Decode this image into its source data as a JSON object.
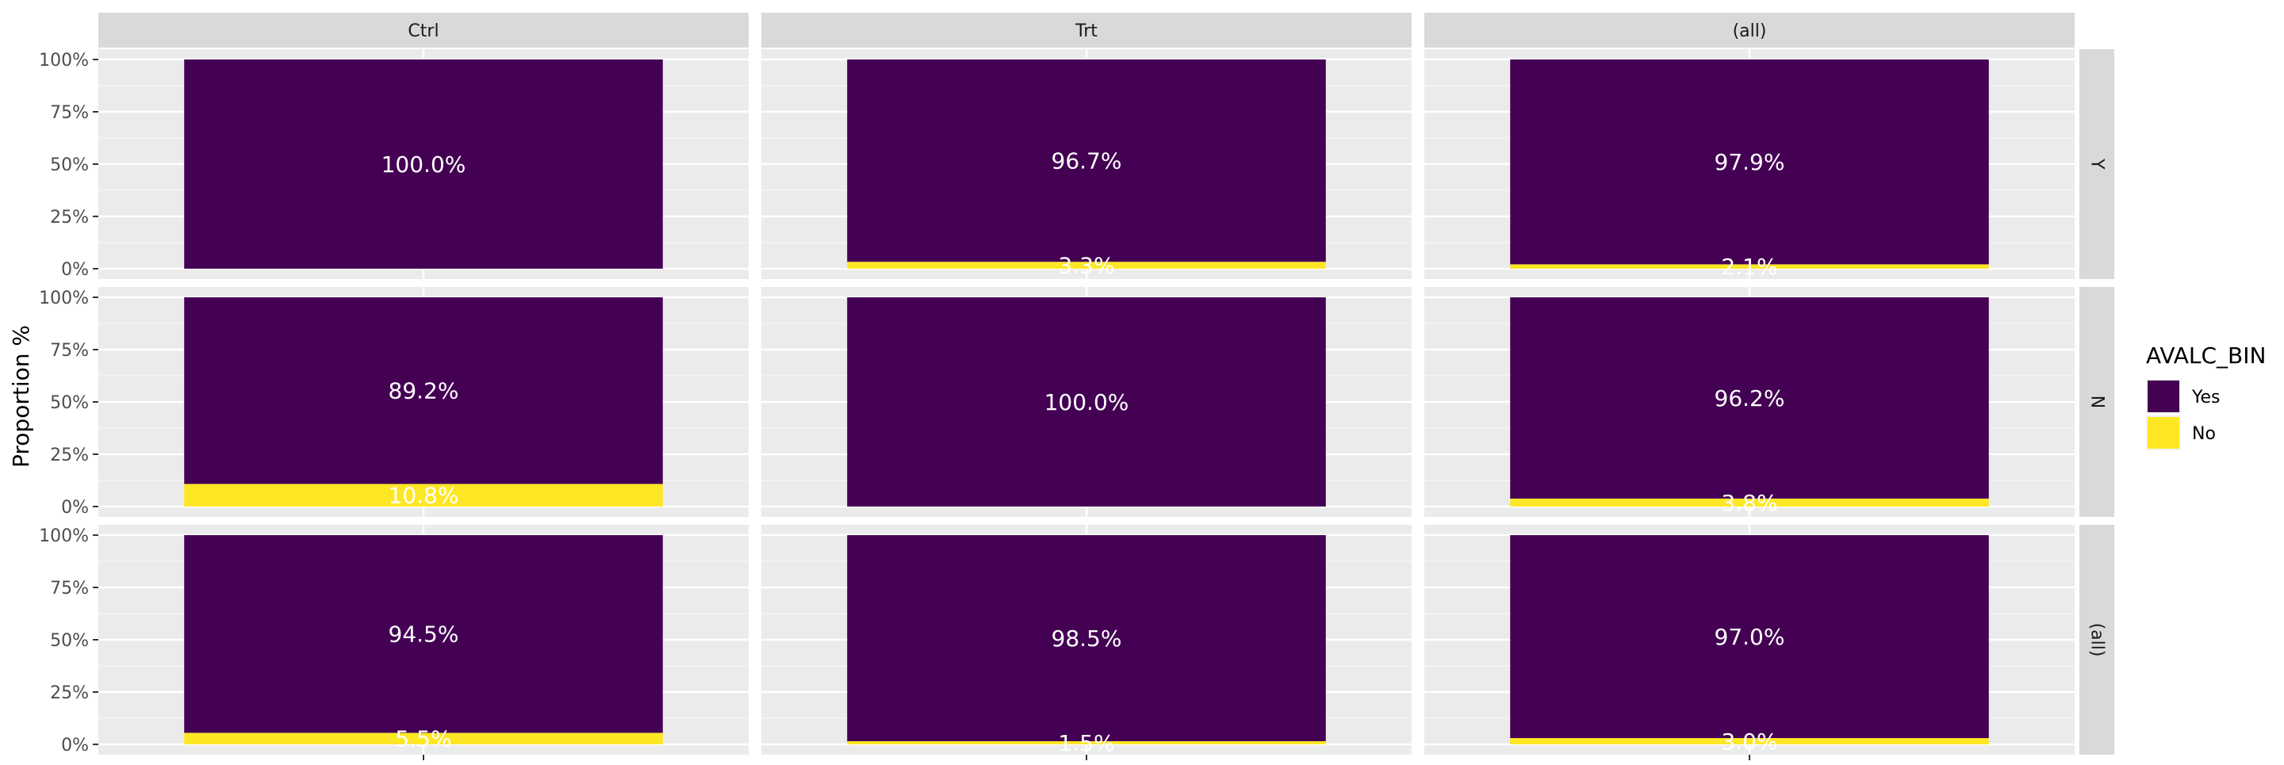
{
  "chart_data": {
    "type": "bar",
    "stacked": true,
    "facet_columns": [
      "Ctrl",
      "Trt",
      "(all)"
    ],
    "facet_rows": [
      "Y",
      "N",
      "(all)"
    ],
    "ylabel": "Proportion %",
    "xlabel": "",
    "ylim": [
      0,
      1
    ],
    "y_ticks": [
      "0%",
      "25%",
      "50%",
      "75%",
      "100%"
    ],
    "grid": true,
    "legend": {
      "title": "AVALC_BIN",
      "position": "right",
      "entries": [
        {
          "name": "Yes",
          "color": "#440154"
        },
        {
          "name": "No",
          "color": "#FDE725"
        }
      ]
    },
    "panels": [
      {
        "row": "Y",
        "col": "Ctrl",
        "yes": 1.0,
        "no": 0.0,
        "yes_label": "100.0%",
        "no_label": ""
      },
      {
        "row": "Y",
        "col": "Trt",
        "yes": 0.967,
        "no": 0.033,
        "yes_label": "96.7%",
        "no_label": "3.3%"
      },
      {
        "row": "Y",
        "col": "(all)",
        "yes": 0.979,
        "no": 0.021,
        "yes_label": "97.9%",
        "no_label": "2.1%"
      },
      {
        "row": "N",
        "col": "Ctrl",
        "yes": 0.892,
        "no": 0.108,
        "yes_label": "89.2%",
        "no_label": "10.8%"
      },
      {
        "row": "N",
        "col": "Trt",
        "yes": 1.0,
        "no": 0.0,
        "yes_label": "100.0%",
        "no_label": ""
      },
      {
        "row": "N",
        "col": "(all)",
        "yes": 0.962,
        "no": 0.038,
        "yes_label": "96.2%",
        "no_label": "3.8%"
      },
      {
        "row": "(all)",
        "col": "Ctrl",
        "yes": 0.945,
        "no": 0.055,
        "yes_label": "94.5%",
        "no_label": "5.5%"
      },
      {
        "row": "(all)",
        "col": "Trt",
        "yes": 0.985,
        "no": 0.015,
        "yes_label": "98.5%",
        "no_label": "1.5%"
      },
      {
        "row": "(all)",
        "col": "(all)",
        "yes": 0.97,
        "no": 0.03,
        "yes_label": "97.0%",
        "no_label": "3.0%"
      }
    ]
  }
}
